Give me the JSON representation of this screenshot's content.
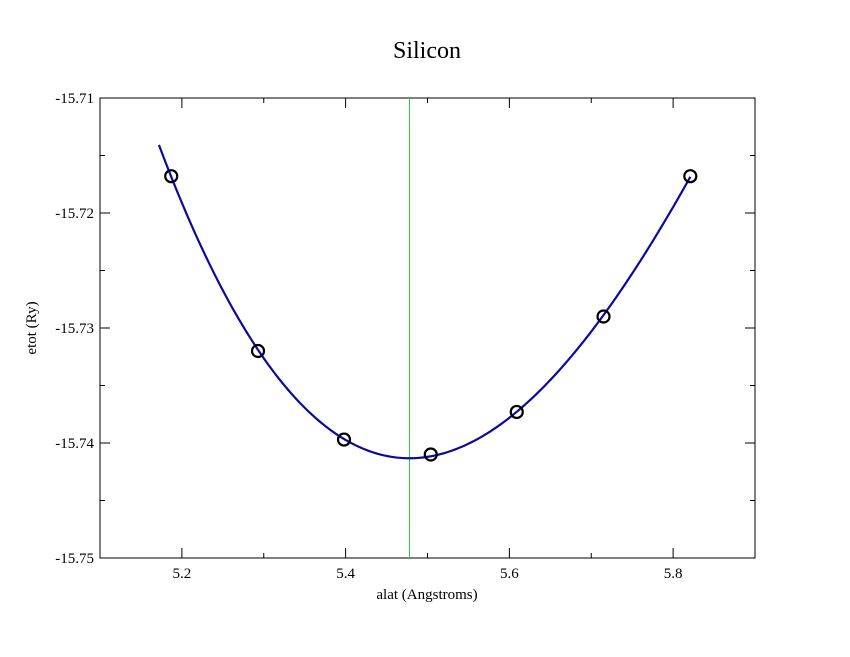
{
  "chart_data": {
    "type": "scatter",
    "title": "Silicon",
    "xlabel": "alat (Angstroms)",
    "ylabel": "etot (Ry)",
    "xlim": [
      5.1,
      5.9
    ],
    "ylim": [
      -15.75,
      -15.71
    ],
    "x_ticks": [
      5.2,
      5.4,
      5.6,
      5.8
    ],
    "x_tick_labels": [
      "5.2",
      "5.4",
      "5.6",
      "5.8"
    ],
    "y_ticks": [
      -15.75,
      -15.74,
      -15.73,
      -15.72,
      -15.71
    ],
    "y_tick_labels": [
      "-15.75",
      "-15.74",
      "-15.73",
      "-15.72",
      "-15.71"
    ],
    "grid": false,
    "series": [
      {
        "kind": "points",
        "marker": "open-circle",
        "color": "#000000",
        "x": [
          5.187,
          5.293,
          5.398,
          5.504,
          5.609,
          5.715,
          5.821
        ],
        "y": [
          -15.7168,
          -15.732,
          -15.7397,
          -15.741,
          -15.7373,
          -15.729,
          -15.7168
        ]
      },
      {
        "kind": "fit-curve",
        "color": "#0a0aa0",
        "x": [
          5.172,
          5.821
        ],
        "minimum_x": 5.478,
        "minimum_y": -15.7413
      },
      {
        "kind": "vertical-line",
        "color": "#2ecc40",
        "x": 5.478
      }
    ]
  }
}
